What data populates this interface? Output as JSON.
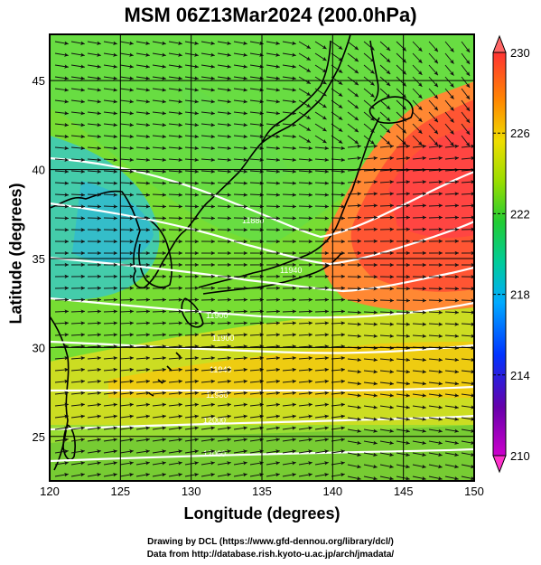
{
  "title": "MSM 06Z13Mar2024 (200.0hPa)",
  "xlabel": "Longitude (degrees)",
  "ylabel": "Latitude  (degrees)",
  "credits": [
    "Drawing by DCL (https://www.gfd-dennou.org/library/dcl/)",
    "Data from http://database.rish.kyoto-u.ac.jp/arch/jmadata/"
  ],
  "map": {
    "lon_range": [
      120,
      150
    ],
    "lat_range": [
      22.5,
      47.6
    ],
    "lon_ticks": [
      120,
      125,
      130,
      135,
      140,
      145,
      150
    ],
    "lat_ticks": [
      25,
      30,
      35,
      40,
      45
    ],
    "colorbar": {
      "ticks": [
        210,
        214,
        218,
        222,
        226,
        230
      ],
      "range": [
        210,
        230
      ],
      "colors": [
        "#ff33cc",
        "#990099",
        "#0000ff",
        "#00ccff",
        "#22cc55",
        "#aaee00",
        "#ffdd00",
        "#ff8800",
        "#ff3333",
        "#ff6666"
      ]
    },
    "contour_labels": [
      "11880",
      "11940",
      "11900",
      "11900",
      "11940",
      "11980",
      "12000",
      "12060"
    ]
  }
}
